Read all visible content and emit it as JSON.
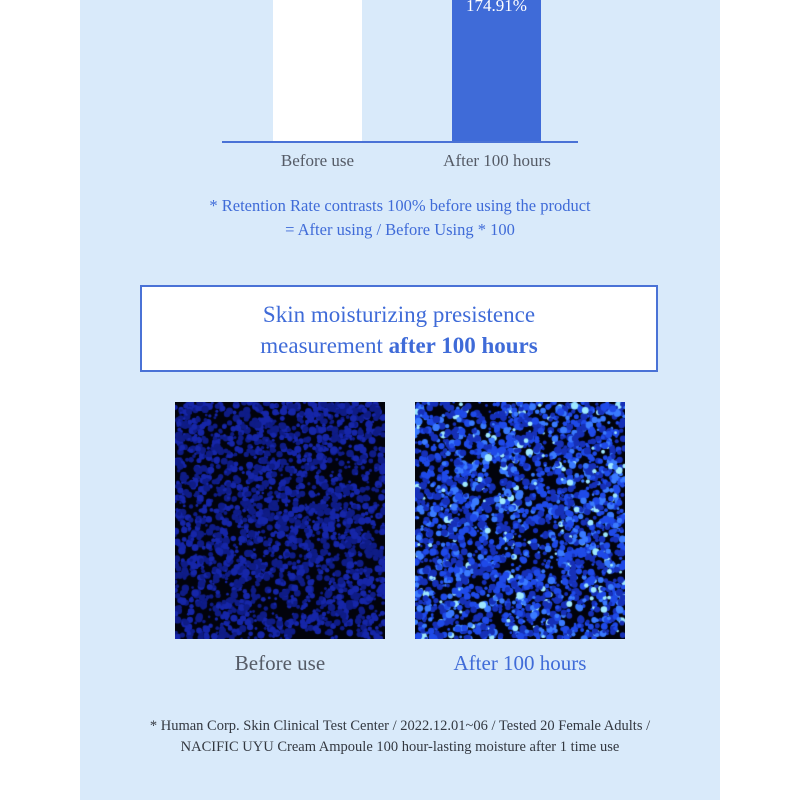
{
  "chart": {
    "after_value_label": "174.91%",
    "categories": [
      "Before use",
      "After 100 hours"
    ]
  },
  "notes": {
    "line1": "* Retention Rate contrasts 100% before using the product",
    "line2": "= After using / Before Using * 100"
  },
  "section_title": {
    "line1": "Skin moisturizing presistence",
    "line2_normal": "measurement ",
    "line2_bold": "after 100 hours"
  },
  "images": {
    "before_caption": "Before use",
    "after_caption": "After 100 hours"
  },
  "footnote": {
    "line1": "* Human Corp. Skin Clinical Test Center / 2022.12.01~06 / Tested 20 Female Adults /",
    "line2": "NACIFIC UYU Cream Ampoule 100 hour-lasting moisture after 1 time use"
  },
  "colors": {
    "panel_bg": "#d9eafa",
    "accent": "#3f6bd8"
  }
}
